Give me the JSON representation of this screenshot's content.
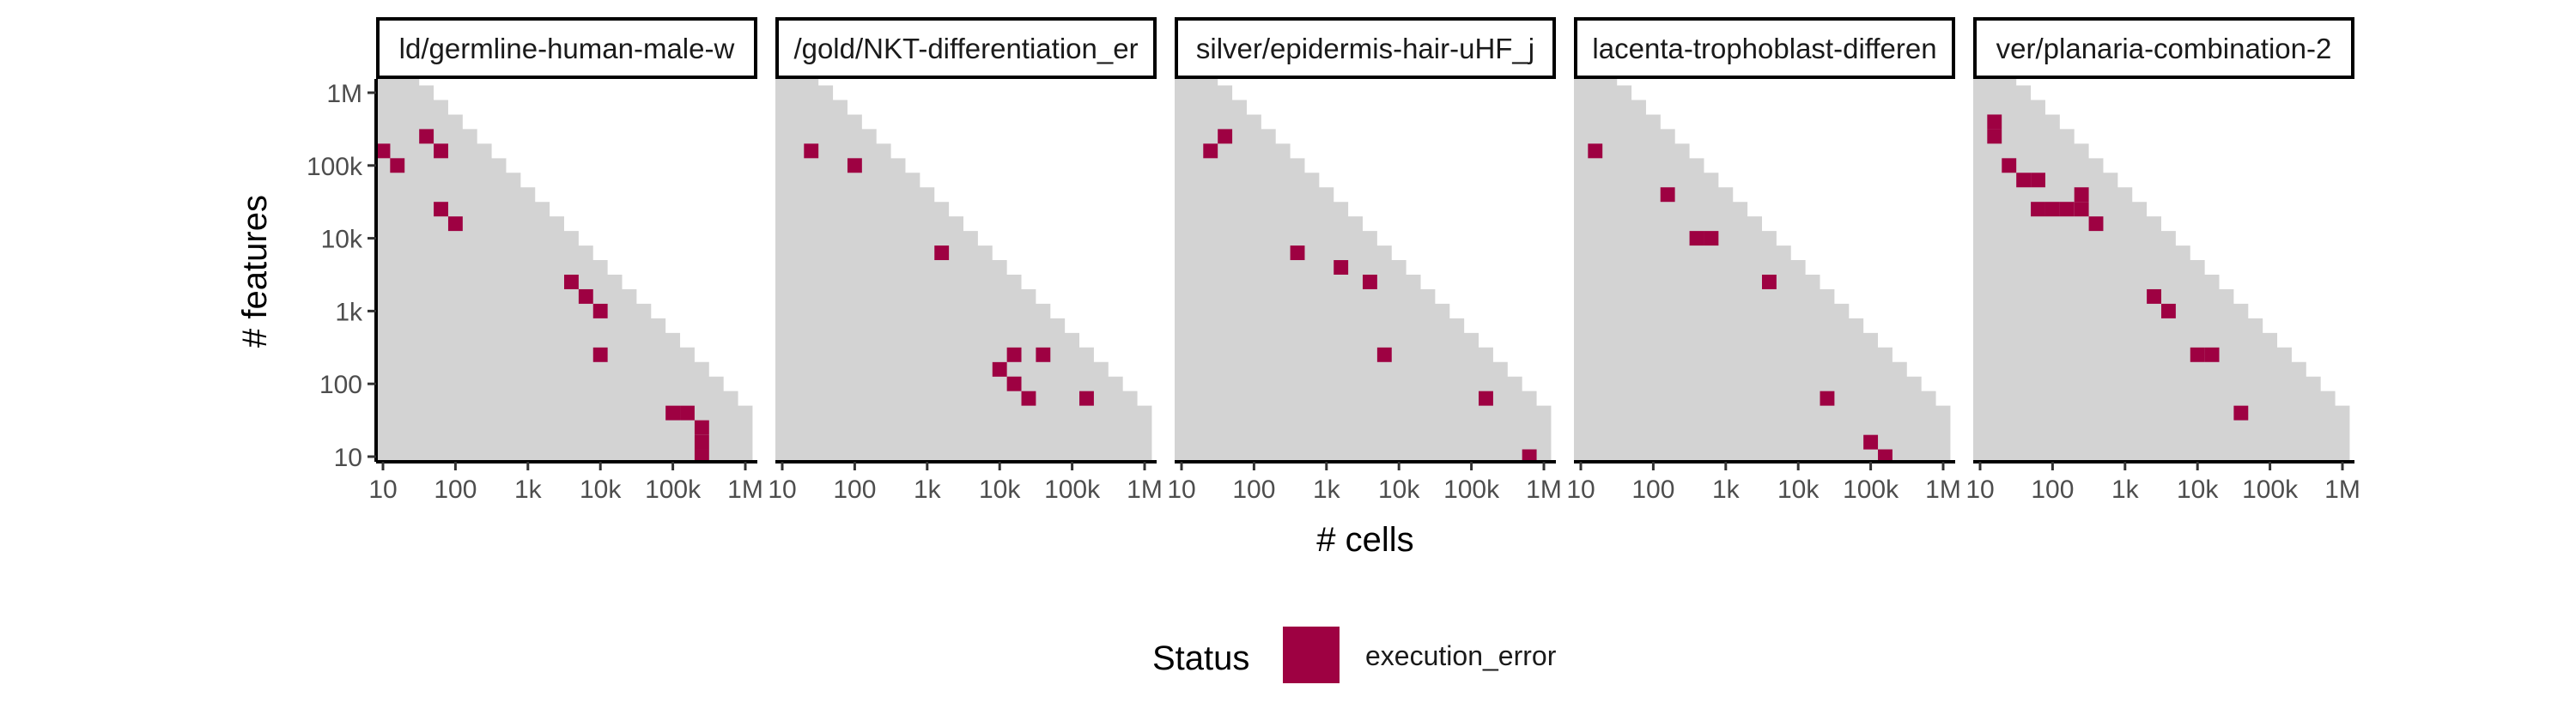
{
  "chart_data": {
    "type": "heatmap",
    "x_label": "# cells",
    "y_label": "# features",
    "x_scale": "log10",
    "y_scale": "log10",
    "x_ticks": [
      {
        "value": 10,
        "label": "10"
      },
      {
        "value": 100,
        "label": "100"
      },
      {
        "value": 1000,
        "label": "1k"
      },
      {
        "value": 10000,
        "label": "10k"
      },
      {
        "value": 100000,
        "label": "100k"
      },
      {
        "value": 1000000,
        "label": "1M"
      }
    ],
    "y_ticks": [
      {
        "value": 10,
        "label": "10"
      },
      {
        "value": 100,
        "label": "100"
      },
      {
        "value": 1000,
        "label": "1k"
      },
      {
        "value": 10000,
        "label": "10k"
      },
      {
        "value": 100000,
        "label": "100k"
      },
      {
        "value": 1000000,
        "label": "1M"
      }
    ],
    "x_range": [
      10,
      1000000
    ],
    "y_range": [
      10,
      1000000
    ],
    "tile_step_log10": 0.2,
    "background_color": "#d3d3d3",
    "legend": {
      "title": "Status",
      "entries": [
        {
          "label": "execution_error",
          "color": "#9e0142"
        }
      ],
      "position": "bottom"
    },
    "panels": [
      {
        "title": "ld/germline-human-male-w",
        "error_tiles": [
          [
            10,
            158489
          ],
          [
            15.8,
            100000
          ],
          [
            39.8,
            251189
          ],
          [
            63.1,
            158489
          ],
          [
            63.1,
            25119
          ],
          [
            100,
            15849
          ],
          [
            3981,
            2512
          ],
          [
            6310,
            1585
          ],
          [
            10000,
            1000
          ],
          [
            10000,
            251
          ],
          [
            100000,
            39.8
          ],
          [
            158489,
            39.8
          ],
          [
            251189,
            25.1
          ],
          [
            251189,
            15.8
          ],
          [
            251189,
            10
          ]
        ]
      },
      {
        "title": "/gold/NKT-differentiation_er",
        "error_tiles": [
          [
            25.1,
            158489
          ],
          [
            100,
            100000
          ],
          [
            1585,
            6310
          ],
          [
            10000,
            158
          ],
          [
            15849,
            251
          ],
          [
            15849,
            100
          ],
          [
            25119,
            63.1
          ],
          [
            39811,
            251
          ],
          [
            158489,
            63.1
          ]
        ]
      },
      {
        "title": "silver/epidermis-hair-uHF_j",
        "error_tiles": [
          [
            25.1,
            158489
          ],
          [
            39.8,
            251189
          ],
          [
            398,
            6310
          ],
          [
            1585,
            3981
          ],
          [
            3981,
            2512
          ],
          [
            6310,
            251
          ],
          [
            158489,
            63.1
          ],
          [
            630957,
            10
          ]
        ]
      },
      {
        "title": "lacenta-trophoblast-differen",
        "error_tiles": [
          [
            15.8,
            158489
          ],
          [
            158,
            39811
          ],
          [
            398,
            10000
          ],
          [
            631,
            10000
          ],
          [
            3981,
            2512
          ],
          [
            25119,
            63.1
          ],
          [
            100000,
            15.8
          ],
          [
            158489,
            10
          ]
        ]
      },
      {
        "title": "ver/planaria-combination-2",
        "error_tiles": [
          [
            15.8,
            398107
          ],
          [
            15.8,
            251189
          ],
          [
            25.1,
            100000
          ],
          [
            39.8,
            63096
          ],
          [
            63.1,
            63096
          ],
          [
            63.1,
            25119
          ],
          [
            100,
            25119
          ],
          [
            158,
            25119
          ],
          [
            251,
            39811
          ],
          [
            251,
            25119
          ],
          [
            398,
            15849
          ],
          [
            2512,
            1585
          ],
          [
            3981,
            1000
          ],
          [
            10000,
            251
          ],
          [
            15849,
            251
          ],
          [
            39811,
            39.8
          ]
        ]
      }
    ]
  }
}
